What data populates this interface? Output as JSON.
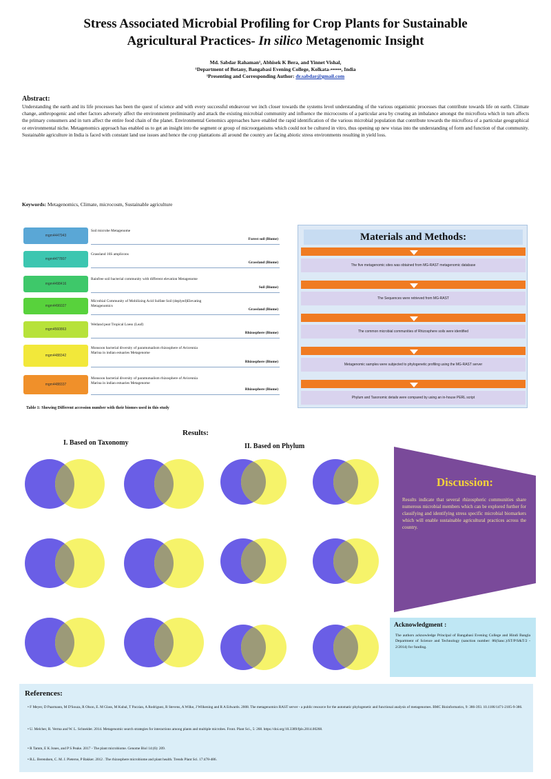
{
  "title": {
    "line1": "Stress Associated Microbial Profiling for Crop Plants for Sustainable",
    "line2_pre": "Agricultural Practices-",
    "line2_ital": "In silico",
    "line2_post": "Metagenomic Insight"
  },
  "authors": {
    "names": "Md. Sabdar Rahaman¹, Abhisek K Bera, and Yinnet Vishal,",
    "affiliation": "¹Department of Botany, Bangabasi Evening College, Kolkata-••••••, India",
    "corresponding_label": "¹Presenting and Corresponding Author:",
    "email": "dr.sabdar@gmail.com"
  },
  "abstract": {
    "heading": "Abstract:",
    "body": "Understanding the earth and its life processes has been the quest of science and with every successful endeavour we inch closer towards the systems level understanding of the various organismic processes that contribute towards life on earth. Climate change, anthropogenic and other factors adversely affect the environment preliminarily and attack the existing microbial community and influence the microcosms of a particular area by creating an imbalance amongst the microflora which in turn affects the primary consumers and in turn affect the entire food chain of the planet. Environmental Genomics approaches have enabled the rapid identification of the various microbial population that contribute towards the microflora of a particular geographical or environmental niche. Metagenomics approach has enabled us to get an insight into the segment or group of microorganisms which could not be cultured in vitro, thus opening up new vistas into the understanding of form and function of that community. Sustainable agriculture in India is faced with constant land use issues and hence the crop plantations all around the country are facing abiotic stress environments resulting in yield loss."
  },
  "keywords": {
    "label": "Keywords:",
    "text": "Metagenomics, Climate, microcosm, Sustainable agriculture"
  },
  "accession_table": {
    "rows": [
      {
        "code": "mgm4447943",
        "color": "#5aa7d6",
        "desc": "Soil microbe Metagenome",
        "env": "Forest soil (Biome)"
      },
      {
        "code": "mgm4477807",
        "color": "#3cc6b0",
        "desc": "Grassland 16S amplicons",
        "env": "Grassland (Biome)"
      },
      {
        "code": "mgm4498416",
        "color": "#3ec86a",
        "desc": "Rainfree soil bacterial community with different elevation Metagenome",
        "env": "Soil (Biome)"
      },
      {
        "code": "mgm4496027",
        "color": "#58d23c",
        "desc": "Microbial Community of Mobilizing Acid Sulfate Soil (deplyed)Elevating Metagenomics",
        "env": "Grassland (Biome)"
      },
      {
        "code": "mgm4560863",
        "color": "#b7e23a",
        "desc": "Wetland peat Tropical Loess (Leaf)",
        "env": "Rhizosphere (Biome)"
      },
      {
        "code": "mgm4488342",
        "color": "#f2e83a",
        "desc": "Monsoon bacterial diversity of paramutualism rhizosphere of Avicennia Marina in indian estuaries Metagenome",
        "env": "Rhizosphere (Biome)"
      },
      {
        "code": "mgm4488337",
        "color": "#f0902a",
        "desc": "Monsoon bacterial diversity of paramutualism rhizosphere of Avicennia Marina in indian estuaries Metagenome",
        "env": "Rhizosphere (Biome)"
      }
    ],
    "caption": "Table 1: Showing Different accession number with their biomes used in this study"
  },
  "materials": {
    "heading": "Materials and Methods:",
    "steps": [
      "The five metagenomic sites was obtained from MG-RAST metagenomic database",
      "The Sequences were retrieved from MG-RAST",
      "The common microbial communities of Rhizosphere soils were identified",
      "Metagenomic samples were subjected to phylogenetic profiling using the MG-RAST server",
      "Phylum and Taxonomic details were compared by using an in-house PERL script"
    ]
  },
  "results": {
    "heading": "Results:",
    "sub1": "I. Based on Taxonomy",
    "sub2": "II. Based on Phylum"
  },
  "venn_colors": {
    "left": "#6a5ee6",
    "right": "#f6f36a",
    "overlap": "#9c9a78"
  },
  "discussion": {
    "heading": "Discussion:",
    "body": "Results indicate that several rhizospheric communities share numerous microbial members which can be explored further for classifying and identifying stress specific microbial biomarkers which will enable sustainable agricultural practices across the country.",
    "bg": "#7a4a9a"
  },
  "acknowledgment": {
    "heading": "Acknowledgment :",
    "body": "The authors acknowledge Principal of Bangabasi Evening College and Hindi Bangla Department of Science and Technology (sanction number: 86(Sanc.)/ST/P/S&T/2 - 2/2014) for funding."
  },
  "references": {
    "heading": "References:",
    "items": [
      "F Meyer, D Paarmann, M D'Souza, R Olson, E. M Glass, M Kubal, T Paczian, A Rodriguez, R Stevens, A Wilke, J Wilkening and R A Edwards. 2008. The metagenomics RAST server - a public resource for the automatic phylogenetic and functional analysis of metagenomes. BMC Bioinformatics, 9: 386-393. 10.1186/1471-2105-9-386.",
      "U. Melcher, R. Verma and W. L. Schneider. 2014. Metagenomic search strategies for interactions among plants and multiple microbes. Front. Plant Sci., 5: 268. https://doi.org/10.3389/fpls.2014.00268.",
      "R Tamm, E K Jones, and P S Peake. 2017 - The plant microbiome. Genome Biol 14:(6): 209.",
      "R.L. Berendsen, C. M. J. Pieterse, P Bakker. 2012 . The rhizosphere microbiome and plant health. Trends Plant Sci. 17:478-486."
    ]
  }
}
